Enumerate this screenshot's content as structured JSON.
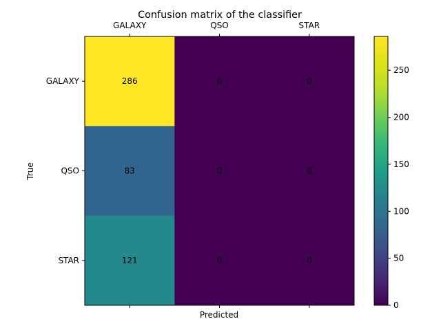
{
  "chart_data": {
    "type": "heatmap",
    "title": "Confusion matrix of the classifier",
    "xlabel": "Predicted",
    "ylabel": "True",
    "x_categories": [
      "GALAXY",
      "QSO",
      "STAR"
    ],
    "y_categories": [
      "GALAXY",
      "QSO",
      "STAR"
    ],
    "values": [
      [
        286,
        0,
        0
      ],
      [
        83,
        0,
        0
      ],
      [
        121,
        0,
        0
      ]
    ],
    "colormap": "viridis",
    "colorbar": {
      "range": [
        0,
        286
      ],
      "ticks": [
        0,
        50,
        100,
        150,
        200,
        250
      ]
    },
    "x_tick_position": "top",
    "grid": false
  }
}
